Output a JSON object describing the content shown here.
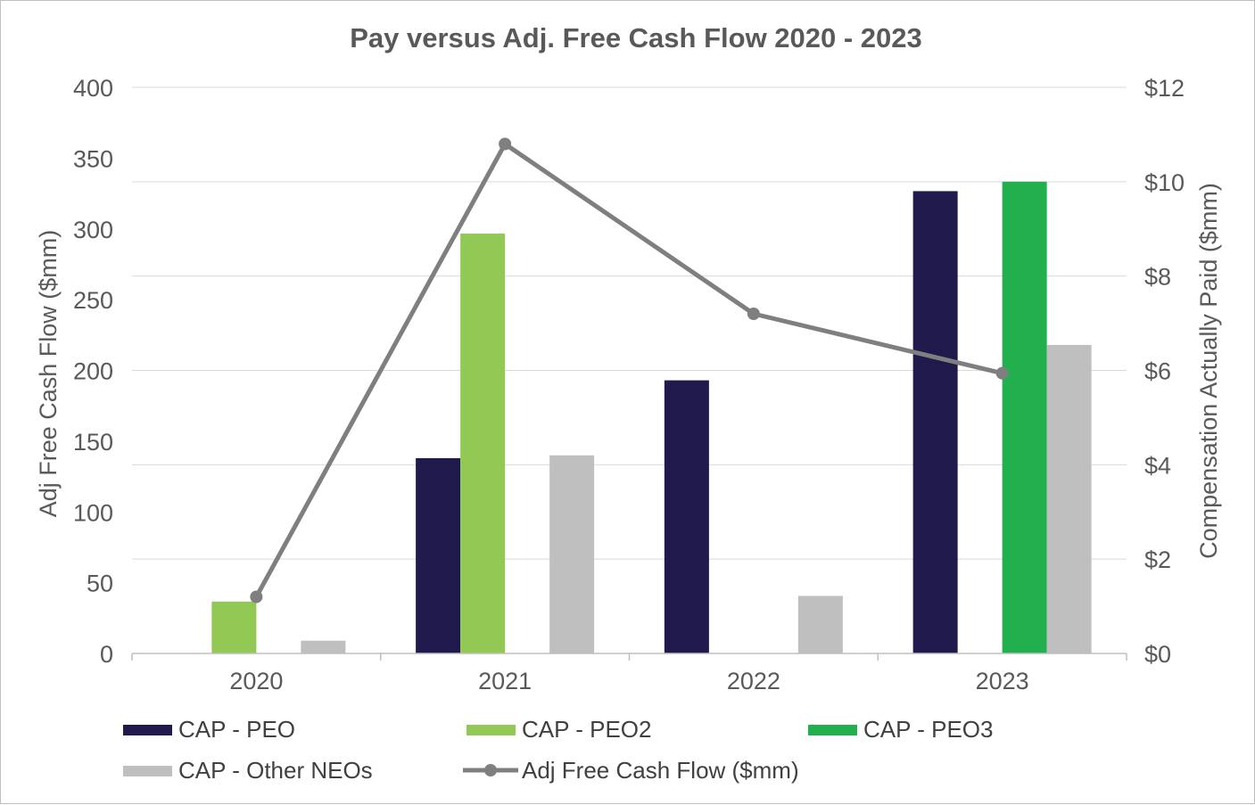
{
  "chart_data": {
    "type": "bar",
    "title": "Pay versus Adj. Free Cash Flow 2020 - 2023",
    "categories": [
      "2020",
      "2021",
      "2022",
      "2023"
    ],
    "y_left": {
      "label": "Adj Free Cash Flow ($mm)",
      "range": [
        0,
        400
      ],
      "ticks": [
        0,
        50,
        100,
        150,
        200,
        250,
        300,
        350,
        400
      ],
      "tick_labels": [
        "0",
        "50",
        "100",
        "150",
        "200",
        "250",
        "300",
        "350",
        "400"
      ]
    },
    "y_right": {
      "label": "Compensation Actually Paid ($mm)",
      "range": [
        0,
        12
      ],
      "ticks": [
        0,
        2,
        4,
        6,
        8,
        10,
        12
      ],
      "tick_labels": [
        "$0",
        "$2",
        "$4",
        "$6",
        "$8",
        "$10",
        "$12"
      ]
    },
    "series": [
      {
        "name": "CAP - PEO",
        "type": "bar",
        "axis": "right",
        "color": "#1f1a4b",
        "values": [
          null,
          4.14,
          5.79,
          9.8
        ]
      },
      {
        "name": "CAP - PEO2",
        "type": "bar",
        "axis": "right",
        "color": "#92c954",
        "values": [
          1.1,
          8.9,
          null,
          null
        ]
      },
      {
        "name": "CAP - PEO3",
        "type": "bar",
        "axis": "right",
        "color": "#22b04f",
        "values": [
          null,
          null,
          null,
          10.0
        ]
      },
      {
        "name": "CAP - Other NEOs",
        "type": "bar",
        "axis": "right",
        "color": "#bfbfbf",
        "values": [
          0.27,
          4.2,
          1.22,
          6.54
        ]
      },
      {
        "name": "Adj Free Cash Flow ($mm)",
        "type": "line",
        "axis": "left",
        "color": "#7f7f7f",
        "values": [
          40,
          360,
          240,
          198
        ]
      }
    ],
    "legend": [
      {
        "label": "CAP - PEO",
        "kind": "box",
        "color": "#1f1a4b"
      },
      {
        "label": "CAP - PEO2",
        "kind": "box",
        "color": "#92c954"
      },
      {
        "label": "CAP - PEO3",
        "kind": "box",
        "color": "#22b04f"
      },
      {
        "label": "CAP - Other NEOs",
        "kind": "box",
        "color": "#bfbfbf"
      },
      {
        "label": "Adj Free Cash Flow ($mm)",
        "kind": "line",
        "color": "#7f7f7f"
      }
    ],
    "legend_position": "bottom",
    "grid": true
  }
}
